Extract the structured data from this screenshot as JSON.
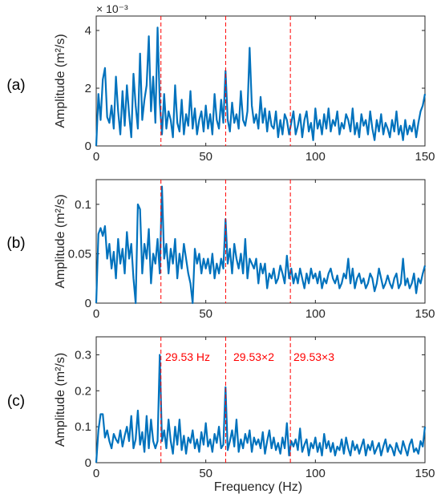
{
  "figure": {
    "xlabel": "Frequency (Hz)",
    "marker_color": "#ff0000",
    "line_color": "#0072bd",
    "marker_freqs": [
      29.53,
      59.06,
      88.59
    ]
  },
  "panels": [
    {
      "label": "(a)",
      "ylabel": "Amplitude (m²/s)",
      "exponent": "× 10⁻³",
      "yticks": [
        "0",
        "2",
        "4"
      ],
      "xticks": [
        "0",
        "50",
        "100",
        "150"
      ],
      "annotations": []
    },
    {
      "label": "(b)",
      "ylabel": "Amplitude (m²/s)",
      "exponent": "",
      "yticks": [
        "0",
        "0.05",
        "0.1"
      ],
      "xticks": [
        "0",
        "50",
        "100",
        "150"
      ],
      "annotations": []
    },
    {
      "label": "(c)",
      "ylabel": "Amplitude (m²/s)",
      "exponent": "",
      "yticks": [
        "0",
        "0.1",
        "0.2",
        "0.3"
      ],
      "xticks": [
        "0",
        "50",
        "100",
        "150"
      ],
      "annotations": [
        "29.53 Hz",
        "29.53×2",
        "29.53×3"
      ]
    }
  ],
  "chart_data": [
    {
      "type": "line",
      "xlim": [
        0,
        150
      ],
      "ylim": [
        0,
        0.0045
      ],
      "yticks": [
        0,
        0.002,
        0.004
      ],
      "xticks": [
        0,
        50,
        100,
        150
      ],
      "series": [
        {
          "x": [
            0,
            1,
            2,
            3,
            4,
            5,
            6,
            7,
            8,
            9,
            10,
            11,
            12,
            13,
            14,
            15,
            16,
            17,
            18,
            19,
            20,
            21,
            22,
            23,
            24,
            25,
            26,
            27,
            28,
            29,
            30,
            31,
            32,
            33,
            34,
            35,
            36,
            37,
            38,
            39,
            40,
            41,
            42,
            43,
            44,
            45,
            46,
            47,
            48,
            49,
            50,
            51,
            52,
            53,
            54,
            55,
            56,
            57,
            58,
            59,
            60,
            61,
            62,
            63,
            64,
            65,
            66,
            67,
            68,
            69,
            70,
            71,
            72,
            73,
            74,
            75,
            76,
            77,
            78,
            79,
            80,
            81,
            82,
            83,
            84,
            85,
            86,
            87,
            88,
            89,
            90,
            91,
            92,
            93,
            94,
            95,
            96,
            97,
            98,
            99,
            100,
            101,
            102,
            103,
            104,
            105,
            106,
            107,
            108,
            109,
            110,
            111,
            112,
            113,
            114,
            115,
            116,
            117,
            118,
            119,
            120,
            121,
            122,
            123,
            124,
            125,
            126,
            127,
            128,
            129,
            130,
            131,
            132,
            133,
            134,
            135,
            136,
            137,
            138,
            139,
            140,
            141,
            142,
            143,
            144,
            145,
            146,
            147,
            148,
            149,
            150
          ],
          "y": [
            0.0,
            0.0018,
            0.0009,
            0.0023,
            0.0027,
            0.001,
            0.0008,
            0.0014,
            0.0006,
            0.0024,
            0.0012,
            0.0004,
            0.0019,
            0.0007,
            0.0021,
            0.0011,
            0.0003,
            0.0025,
            0.0014,
            0.0006,
            0.0032,
            0.0009,
            0.0016,
            0.0021,
            0.0038,
            0.0012,
            0.0024,
            0.0008,
            0.0041,
            0.0015,
            0.0004,
            0.0018,
            0.0006,
            0.0012,
            0.0009,
            0.0003,
            0.0021,
            0.0008,
            0.0005,
            0.0016,
            0.0004,
            0.0011,
            0.0007,
            0.0019,
            0.0006,
            0.0013,
            0.0004,
            0.0009,
            0.0012,
            0.0005,
            0.0014,
            0.0006,
            0.0011,
            0.0004,
            0.0018,
            0.0009,
            0.0006,
            0.0016,
            0.0008,
            0.0026,
            0.0009,
            0.0005,
            0.0015,
            0.0008,
            0.0011,
            0.0006,
            0.0019,
            0.0009,
            0.0007,
            0.0012,
            0.0034,
            0.0014,
            0.0008,
            0.0011,
            0.0006,
            0.0017,
            0.0008,
            0.0013,
            0.0005,
            0.0012,
            0.0007,
            0.0006,
            0.0012,
            0.0003,
            0.0009,
            0.0004,
            0.0011,
            0.0009,
            0.0004,
            0.0008,
            0.0012,
            0.0004,
            0.0007,
            0.0011,
            0.0003,
            0.0009,
            0.0012,
            0.0005,
            0.0008,
            0.0002,
            0.0013,
            0.0006,
            0.0009,
            0.0004,
            0.0011,
            0.0006,
            0.0013,
            0.0005,
            0.0009,
            0.0007,
            0.0012,
            0.0004,
            0.0008,
            0.0006,
            0.0011,
            0.0009,
            0.0005,
            0.0013,
            0.0004,
            0.0008,
            0.0003,
            0.0011,
            0.0007,
            0.0009,
            0.0004,
            0.0012,
            0.0006,
            0.0002,
            0.0009,
            0.0005,
            0.0011,
            0.0004,
            0.0008,
            0.0006,
            0.0003,
            0.0009,
            0.0005,
            0.0012,
            0.0004,
            0.0007,
            0.0002,
            0.0009,
            0.0004,
            0.0007,
            0.0005,
            0.0009,
            0.0003,
            0.0008,
            0.0012,
            0.0014,
            0.0018
          ]
        }
      ]
    },
    {
      "type": "line",
      "xlim": [
        0,
        150
      ],
      "ylim": [
        0,
        0.125
      ],
      "yticks": [
        0,
        0.05,
        0.1
      ],
      "xticks": [
        0,
        50,
        100,
        150
      ],
      "series": [
        {
          "x": [
            0,
            1,
            2,
            3,
            4,
            5,
            6,
            7,
            8,
            9,
            10,
            11,
            12,
            13,
            14,
            15,
            16,
            17,
            18,
            19,
            20,
            21,
            22,
            23,
            24,
            25,
            26,
            27,
            28,
            29,
            30,
            31,
            32,
            33,
            34,
            35,
            36,
            37,
            38,
            39,
            40,
            41,
            42,
            43,
            44,
            45,
            46,
            47,
            48,
            49,
            50,
            51,
            52,
            53,
            54,
            55,
            56,
            57,
            58,
            59,
            60,
            61,
            62,
            63,
            64,
            65,
            66,
            67,
            68,
            69,
            70,
            71,
            72,
            73,
            74,
            75,
            76,
            77,
            78,
            79,
            80,
            81,
            82,
            83,
            84,
            85,
            86,
            87,
            88,
            89,
            90,
            91,
            92,
            93,
            94,
            95,
            96,
            97,
            98,
            99,
            100,
            101,
            102,
            103,
            104,
            105,
            106,
            107,
            108,
            109,
            110,
            111,
            112,
            113,
            114,
            115,
            116,
            117,
            118,
            119,
            120,
            121,
            122,
            123,
            124,
            125,
            126,
            127,
            128,
            129,
            130,
            131,
            132,
            133,
            134,
            135,
            136,
            137,
            138,
            139,
            140,
            141,
            142,
            143,
            144,
            145,
            146,
            147,
            148,
            149,
            150
          ],
          "y": [
            0.0,
            0.07,
            0.076,
            0.068,
            0.078,
            0.045,
            0.06,
            0.035,
            0.052,
            0.025,
            0.065,
            0.04,
            0.055,
            0.03,
            0.072,
            0.045,
            0.06,
            0.025,
            0.0,
            0.1,
            0.095,
            0.03,
            0.06,
            0.045,
            0.075,
            0.02,
            0.05,
            0.04,
            0.065,
            0.03,
            0.118,
            0.045,
            0.06,
            0.03,
            0.055,
            0.04,
            0.065,
            0.025,
            0.05,
            0.035,
            0.06,
            0.045,
            0.03,
            0.02,
            0.0,
            0.055,
            0.04,
            0.05,
            0.03,
            0.045,
            0.035,
            0.045,
            0.03,
            0.05,
            0.025,
            0.04,
            0.03,
            0.045,
            0.035,
            0.085,
            0.04,
            0.055,
            0.03,
            0.06,
            0.045,
            0.035,
            0.05,
            0.03,
            0.065,
            0.025,
            0.045,
            0.04,
            0.035,
            0.045,
            0.02,
            0.04,
            0.03,
            0.04,
            0.015,
            0.03,
            0.025,
            0.035,
            0.02,
            0.025,
            0.038,
            0.03,
            0.02,
            0.048,
            0.025,
            0.035,
            0.02,
            0.03,
            0.02,
            0.035,
            0.025,
            0.015,
            0.03,
            0.02,
            0.035,
            0.025,
            0.03,
            0.02,
            0.032,
            0.015,
            0.025,
            0.02,
            0.03,
            0.035,
            0.025,
            0.02,
            0.028,
            0.015,
            0.02,
            0.03,
            0.025,
            0.045,
            0.02,
            0.035,
            0.015,
            0.025,
            0.03,
            0.02,
            0.025,
            0.015,
            0.02,
            0.03,
            0.025,
            0.012,
            0.02,
            0.035,
            0.025,
            0.015,
            0.02,
            0.028,
            0.02,
            0.015,
            0.025,
            0.03,
            0.015,
            0.02,
            0.045,
            0.018,
            0.025,
            0.015,
            0.02,
            0.03,
            0.01,
            0.025,
            0.02,
            0.03,
            0.038
          ]
        }
      ]
    },
    {
      "type": "line",
      "xlim": [
        0,
        150
      ],
      "ylim": [
        0,
        0.35
      ],
      "yticks": [
        0,
        0.1,
        0.2,
        0.3
      ],
      "xticks": [
        0,
        50,
        100,
        150
      ],
      "series": [
        {
          "x": [
            0,
            1,
            2,
            3,
            4,
            5,
            6,
            7,
            8,
            9,
            10,
            11,
            12,
            13,
            14,
            15,
            16,
            17,
            18,
            19,
            20,
            21,
            22,
            23,
            24,
            25,
            26,
            27,
            28,
            29,
            30,
            31,
            32,
            33,
            34,
            35,
            36,
            37,
            38,
            39,
            40,
            41,
            42,
            43,
            44,
            45,
            46,
            47,
            48,
            49,
            50,
            51,
            52,
            53,
            54,
            55,
            56,
            57,
            58,
            59,
            60,
            61,
            62,
            63,
            64,
            65,
            66,
            67,
            68,
            69,
            70,
            71,
            72,
            73,
            74,
            75,
            76,
            77,
            78,
            79,
            80,
            81,
            82,
            83,
            84,
            85,
            86,
            87,
            88,
            89,
            90,
            91,
            92,
            93,
            94,
            95,
            96,
            97,
            98,
            99,
            100,
            101,
            102,
            103,
            104,
            105,
            106,
            107,
            108,
            109,
            110,
            111,
            112,
            113,
            114,
            115,
            116,
            117,
            118,
            119,
            120,
            121,
            122,
            123,
            124,
            125,
            126,
            127,
            128,
            129,
            130,
            131,
            132,
            133,
            134,
            135,
            136,
            137,
            138,
            139,
            140,
            141,
            142,
            143,
            144,
            145,
            146,
            147,
            148,
            149,
            150
          ],
          "y": [
            0.0,
            0.09,
            0.135,
            0.135,
            0.07,
            0.09,
            0.06,
            0.04,
            0.08,
            0.065,
            0.055,
            0.09,
            0.045,
            0.075,
            0.1,
            0.06,
            0.13,
            0.04,
            0.065,
            0.145,
            0.05,
            0.085,
            0.03,
            0.13,
            0.04,
            0.12,
            0.06,
            0.04,
            0.06,
            0.3,
            0.06,
            0.09,
            0.04,
            0.12,
            0.06,
            0.025,
            0.1,
            0.05,
            0.12,
            0.035,
            0.075,
            0.025,
            0.07,
            0.055,
            0.09,
            0.04,
            0.065,
            0.03,
            0.085,
            0.05,
            0.11,
            0.045,
            0.065,
            0.03,
            0.08,
            0.055,
            0.1,
            0.04,
            0.05,
            0.21,
            0.035,
            0.06,
            0.09,
            0.045,
            0.12,
            0.03,
            0.065,
            0.04,
            0.08,
            0.055,
            0.09,
            0.03,
            0.07,
            0.05,
            0.065,
            0.04,
            0.085,
            0.025,
            0.06,
            0.09,
            0.04,
            0.07,
            0.035,
            0.055,
            0.025,
            0.07,
            0.04,
            0.11,
            0.02,
            0.06,
            0.045,
            0.065,
            0.035,
            0.095,
            0.03,
            0.05,
            0.065,
            0.02,
            0.055,
            0.04,
            0.07,
            0.03,
            0.055,
            0.02,
            0.08,
            0.04,
            0.06,
            0.03,
            0.055,
            0.02,
            0.045,
            0.035,
            0.065,
            0.025,
            0.07,
            0.04,
            0.02,
            0.06,
            0.035,
            0.05,
            0.025,
            0.045,
            0.065,
            0.02,
            0.05,
            0.035,
            0.06,
            0.025,
            0.04,
            0.055,
            0.02,
            0.045,
            0.065,
            0.03,
            0.05,
            0.04,
            0.02,
            0.055,
            0.035,
            0.025,
            0.06,
            0.04,
            0.02,
            0.05,
            0.065,
            0.03,
            0.04,
            0.025,
            0.06,
            0.045,
            0.1
          ]
        }
      ]
    }
  ]
}
